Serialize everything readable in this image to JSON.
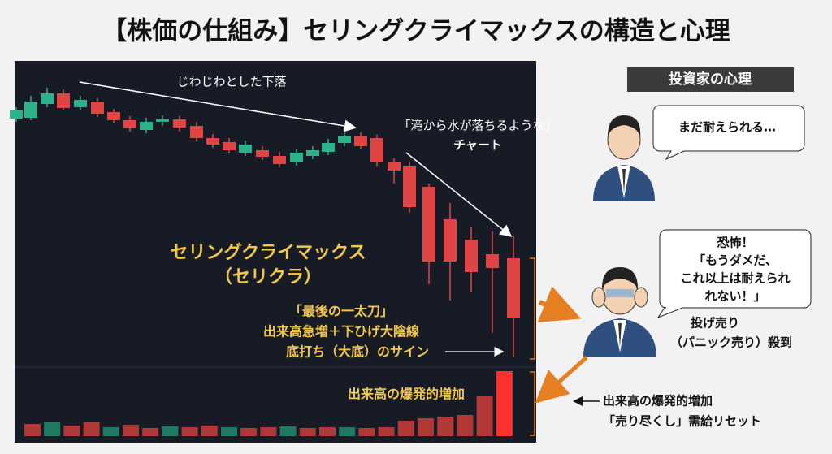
{
  "header": {
    "title": "【株価の仕組み】セリングクライマックスの構造と心理"
  },
  "chart": {
    "slow_decline": "じわじわとした下落",
    "waterfall": [
      "「滝から水が落ちるような」",
      "チャート"
    ],
    "selling_climax": [
      "セリングクライマックス",
      "（セリクラ）"
    ],
    "last_sword": [
      "「最後の一太刀」",
      "出来高急増＋下ひげ大陰線",
      "底打ち（大底）のサイン"
    ],
    "volume_label": "出来高の爆発的増加"
  },
  "psychology": {
    "header": "投資家の心理",
    "bubble_early": "まだ耐えられる…",
    "bubble_panic": [
      "恐怖！",
      "「もうダメだ、",
      "これ以上は耐えられ",
      "れない！」"
    ],
    "panic_note": [
      "投げ売り",
      "（パニック売り）殺到"
    ],
    "volume_note": [
      "出来高の爆発的増加",
      "「売り尽くし」需給リセット"
    ]
  }
}
